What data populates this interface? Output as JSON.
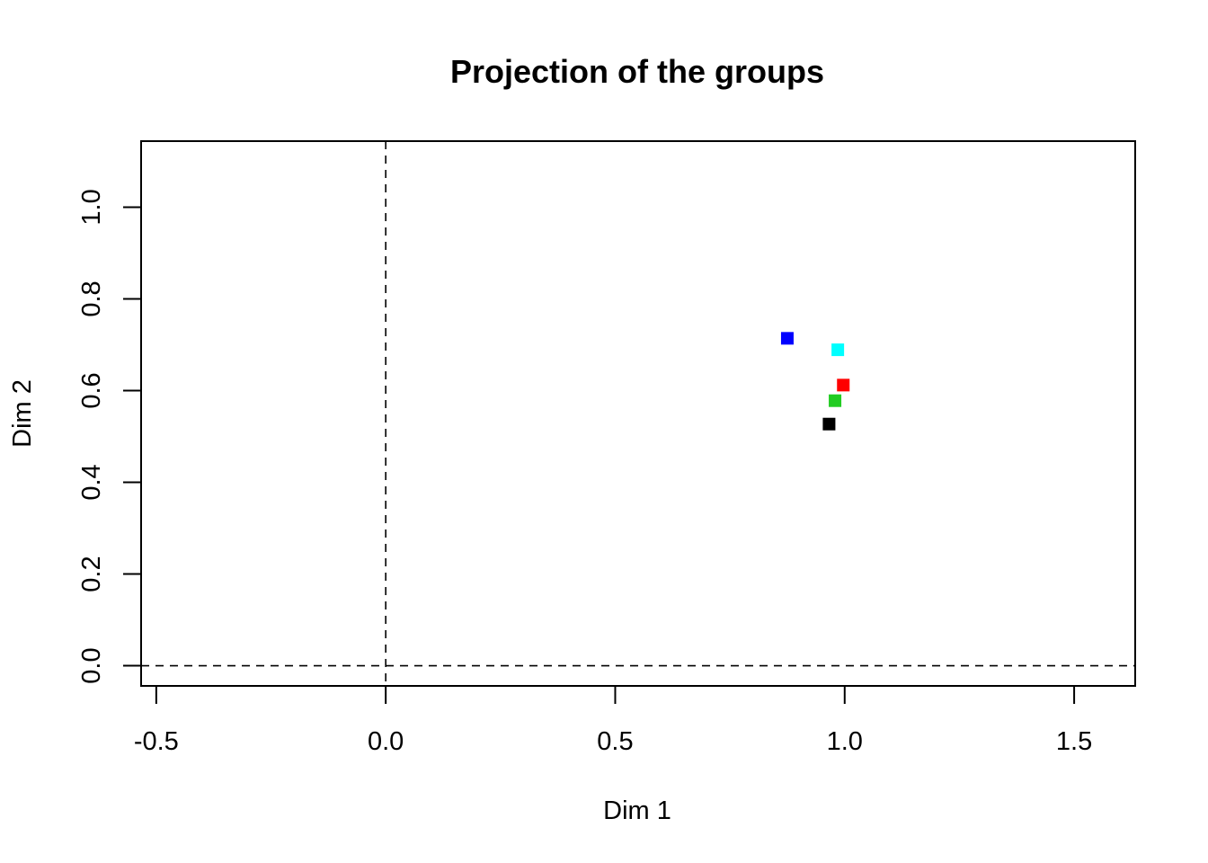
{
  "chart_data": {
    "type": "scatter",
    "title": "Projection of the groups",
    "xlabel": "Dim 1",
    "ylabel": "Dim 2",
    "xlim": [
      -0.533,
      1.633
    ],
    "ylim": [
      -0.044,
      1.144
    ],
    "x_ticks": [
      -0.5,
      0.0,
      0.5,
      1.0,
      1.5
    ],
    "x_tick_labels": [
      "-0.5",
      "0.0",
      "0.5",
      "1.0",
      "1.5"
    ],
    "y_ticks": [
      0.0,
      0.2,
      0.4,
      0.6,
      0.8,
      1.0
    ],
    "y_tick_labels": [
      "0.0",
      "0.2",
      "0.4",
      "0.6",
      "0.8",
      "1.0"
    ],
    "reference_lines": [
      {
        "axis": "x",
        "value": 0,
        "style": "dashed"
      },
      {
        "axis": "y",
        "value": 0,
        "style": "dashed"
      }
    ],
    "grid": false,
    "legend": "none",
    "marker": "square",
    "points": [
      {
        "x": 0.875,
        "y": 0.714,
        "color": "#0000ff"
      },
      {
        "x": 0.985,
        "y": 0.689,
        "color": "#00ffff"
      },
      {
        "x": 0.997,
        "y": 0.612,
        "color": "#ff0000"
      },
      {
        "x": 0.979,
        "y": 0.578,
        "color": "#22cc22"
      },
      {
        "x": 0.966,
        "y": 0.527,
        "color": "#000000"
      }
    ]
  }
}
